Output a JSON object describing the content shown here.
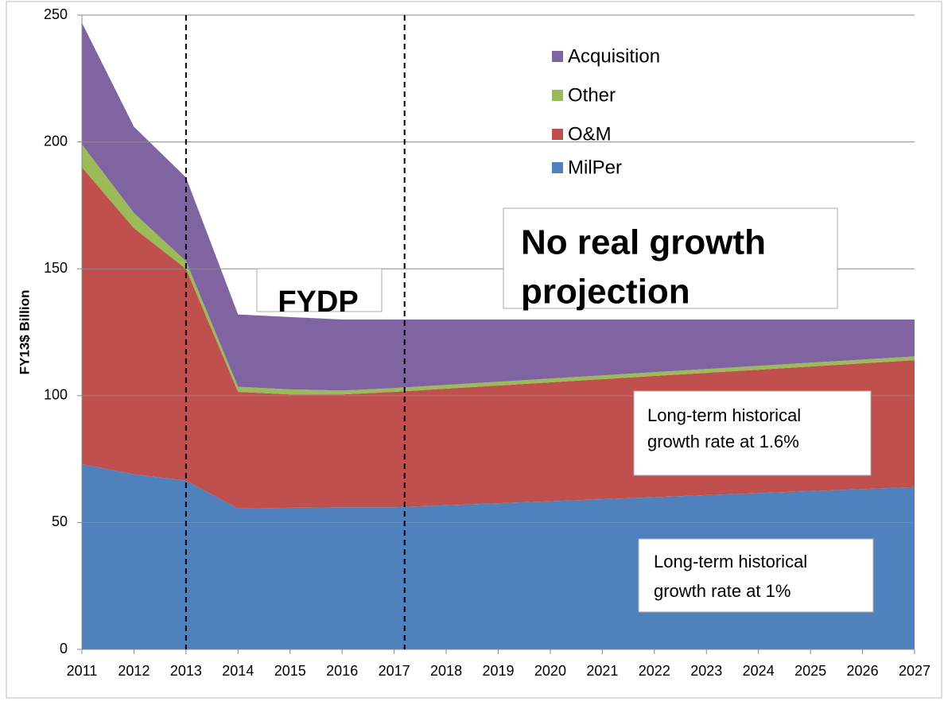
{
  "chart_data": {
    "type": "stacked-area",
    "ylabel": "FY13$ Billion",
    "categories": [
      "2011",
      "2012",
      "2013",
      "2014",
      "2015",
      "2016",
      "2017",
      "2018",
      "2019",
      "2020",
      "2021",
      "2022",
      "2023",
      "2024",
      "2025",
      "2026",
      "2027"
    ],
    "series": [
      {
        "name": "MilPer",
        "color": "#4f81bd",
        "values": [
          73,
          69,
          66.5,
          55.5,
          55.8,
          56,
          56,
          56.8,
          57.6,
          58.4,
          59.2,
          60,
          60.8,
          61.6,
          62.4,
          63.2,
          64
        ]
      },
      {
        "name": "O&M",
        "color": "#c0504d",
        "values": [
          117,
          97,
          83.5,
          46,
          44.7,
          44.5,
          45.5,
          45.95,
          46.4,
          46.85,
          47.3,
          47.75,
          48.2,
          48.65,
          49.1,
          49.55,
          50
        ]
      },
      {
        "name": "Other",
        "color": "#9bbb59",
        "values": [
          9,
          6,
          3,
          2,
          2,
          1.5,
          1.5,
          1.5,
          1.5,
          1.5,
          1.5,
          1.5,
          1.5,
          1.5,
          1.5,
          1.5,
          1.5
        ]
      },
      {
        "name": "Acquisition",
        "color": "#8064a2",
        "values": [
          48,
          34,
          33,
          28.5,
          28.5,
          28,
          27,
          25.75,
          24.5,
          23.25,
          22,
          20.75,
          19.5,
          18.25,
          17,
          15.75,
          14.5
        ]
      }
    ],
    "ylim": [
      0,
      250
    ],
    "yticks": [
      0,
      50,
      100,
      150,
      200,
      250
    ],
    "grid": true,
    "reference_lines": [
      2013,
      2017.2
    ],
    "annotations": [
      {
        "lines": [
          "FYDP"
        ]
      },
      {
        "lines": [
          "No real growth",
          "projection"
        ]
      },
      {
        "lines": [
          "Long-term historical",
          "growth rate at 1.6%"
        ]
      },
      {
        "lines": [
          "Long-term historical",
          "growth rate at 1%"
        ]
      }
    ]
  }
}
